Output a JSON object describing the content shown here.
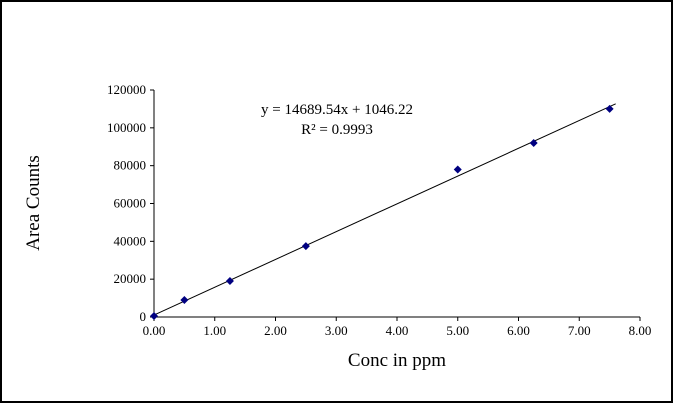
{
  "frame": {
    "background_color": "#ffffff",
    "border_color": "#000000"
  },
  "chart_data": {
    "type": "scatter",
    "x": [
      0.0,
      0.5,
      1.25,
      2.5,
      5.0,
      6.25,
      7.5
    ],
    "y": [
      500,
      9000,
      19000,
      37500,
      78000,
      92000,
      110000
    ],
    "trendline": {
      "slope": 14689.54,
      "intercept": 1046.22,
      "x_start": 0,
      "x_end": 7.6
    },
    "equation_line1": "y = 14689.54x + 1046.22",
    "equation_line2": "R² = 0.9993",
    "xlabel": "Conc in ppm",
    "ylabel": "Area Counts",
    "xlim": [
      0,
      8
    ],
    "ylim": [
      0,
      120000
    ],
    "x_ticks": [
      "0.00",
      "1.00",
      "2.00",
      "3.00",
      "4.00",
      "5.00",
      "6.00",
      "7.00",
      "8.00"
    ],
    "y_ticks": [
      "0",
      "20000",
      "40000",
      "60000",
      "80000",
      "100000",
      "120000"
    ],
    "marker_color": "#000080",
    "line_color": "#000000",
    "axis_color": "#000000",
    "grid": false,
    "legend": "none"
  }
}
